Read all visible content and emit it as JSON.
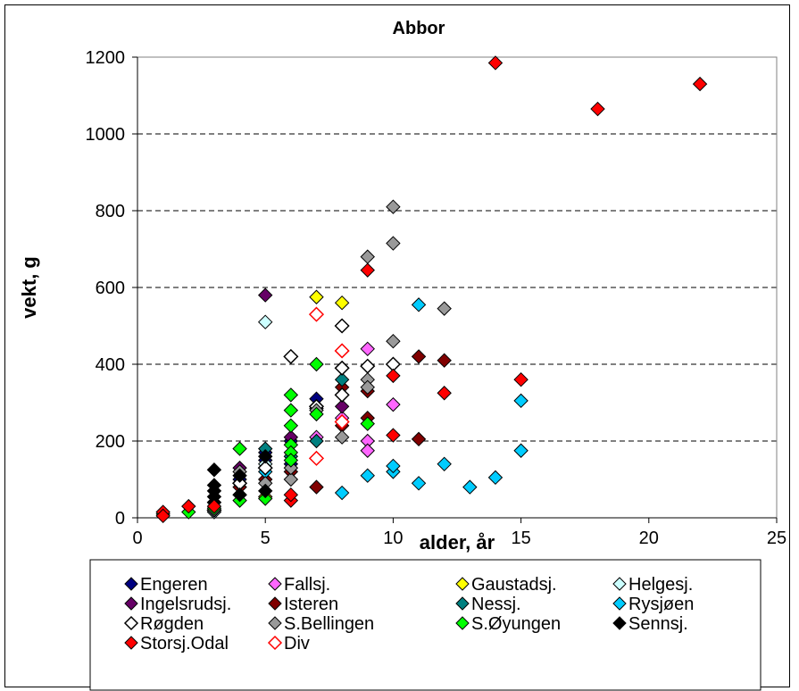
{
  "chart_data": {
    "type": "scatter",
    "title": "Abbor",
    "xlabel": "alder, år",
    "ylabel": "vekt, g",
    "xlim": [
      0,
      25
    ],
    "ylim": [
      0,
      1200
    ],
    "xticks": [
      "0",
      "5",
      "10",
      "15",
      "20",
      "25"
    ],
    "yticks": [
      "0",
      "200",
      "400",
      "600",
      "800",
      "1000",
      "1200"
    ],
    "grid": "horizontal dashed",
    "legend_position": "bottom",
    "series": [
      {
        "name": "Engeren",
        "color": "#000080",
        "marker": "diamond-filled",
        "points": [
          [
            3,
            40
          ],
          [
            4,
            100
          ],
          [
            5,
            150
          ],
          [
            5,
            170
          ],
          [
            6,
            140
          ],
          [
            6,
            200
          ],
          [
            7,
            310
          ],
          [
            7,
            285
          ]
        ]
      },
      {
        "name": "Fallsj.",
        "color": "#ff66ff",
        "marker": "diamond-filled",
        "points": [
          [
            7,
            210
          ],
          [
            8,
            260
          ],
          [
            9,
            200
          ],
          [
            9,
            175
          ],
          [
            9,
            440
          ],
          [
            10,
            295
          ]
        ]
      },
      {
        "name": "Gaustadsj.",
        "color": "#ffff00",
        "marker": "diamond-filled",
        "points": [
          [
            5,
            55
          ],
          [
            7,
            575
          ],
          [
            8,
            560
          ]
        ]
      },
      {
        "name": "Helgesj.",
        "color": "#ccffff",
        "marker": "diamond-filled",
        "points": [
          [
            3,
            15
          ],
          [
            5,
            510
          ],
          [
            5,
            140
          ]
        ]
      },
      {
        "name": "Ingelsrudsj.",
        "color": "#660066",
        "marker": "diamond-filled",
        "points": [
          [
            5,
            580
          ],
          [
            4,
            130
          ],
          [
            6,
            210
          ],
          [
            8,
            290
          ]
        ]
      },
      {
        "name": "Isteren",
        "color": "#800000",
        "marker": "diamond-filled",
        "points": [
          [
            4,
            80
          ],
          [
            5,
            100
          ],
          [
            6,
            120
          ],
          [
            7,
            80
          ],
          [
            8,
            240
          ],
          [
            8,
            340
          ],
          [
            9,
            330
          ],
          [
            9,
            260
          ],
          [
            11,
            420
          ],
          [
            12,
            410
          ],
          [
            11,
            205
          ]
        ]
      },
      {
        "name": "Nessj.",
        "color": "#008080",
        "marker": "diamond-filled",
        "points": [
          [
            4,
            60
          ],
          [
            5,
            180
          ],
          [
            6,
            160
          ],
          [
            7,
            200
          ],
          [
            8,
            360
          ]
        ]
      },
      {
        "name": "Rysjøen",
        "color": "#00ccff",
        "marker": "diamond-filled",
        "points": [
          [
            5,
            120
          ],
          [
            8,
            65
          ],
          [
            9,
            110
          ],
          [
            10,
            120
          ],
          [
            10,
            135
          ],
          [
            11,
            90
          ],
          [
            11,
            555
          ],
          [
            12,
            140
          ],
          [
            13,
            80
          ],
          [
            14,
            105
          ],
          [
            15,
            175
          ],
          [
            15,
            305
          ]
        ]
      },
      {
        "name": "Røgden",
        "color": "#ffffff",
        "marker": "diamond-open",
        "points": [
          [
            3,
            20
          ],
          [
            4,
            90
          ],
          [
            5,
            130
          ],
          [
            6,
            420
          ],
          [
            7,
            290
          ],
          [
            8,
            500
          ],
          [
            8,
            390
          ],
          [
            8,
            320
          ],
          [
            9,
            395
          ],
          [
            10,
            400
          ]
        ]
      },
      {
        "name": "S.Bellingen",
        "color": "#999999",
        "marker": "diamond-filled",
        "points": [
          [
            4,
            120
          ],
          [
            5,
            90
          ],
          [
            6,
            100
          ],
          [
            6,
            130
          ],
          [
            7,
            280
          ],
          [
            8,
            210
          ],
          [
            9,
            680
          ],
          [
            9,
            360
          ],
          [
            9,
            340
          ],
          [
            10,
            810
          ],
          [
            10,
            715
          ],
          [
            10,
            460
          ],
          [
            12,
            545
          ]
        ]
      },
      {
        "name": "S.Øyungen",
        "color": "#00ff00",
        "marker": "diamond-filled",
        "points": [
          [
            1,
            10
          ],
          [
            2,
            15
          ],
          [
            3,
            25
          ],
          [
            4,
            45
          ],
          [
            4,
            180
          ],
          [
            5,
            50
          ],
          [
            6,
            320
          ],
          [
            6,
            280
          ],
          [
            6,
            240
          ],
          [
            6,
            190
          ],
          [
            6,
            170
          ],
          [
            6,
            150
          ],
          [
            7,
            400
          ],
          [
            7,
            270
          ],
          [
            9,
            245
          ]
        ]
      },
      {
        "name": "Sennsj.",
        "color": "#000000",
        "marker": "diamond-filled",
        "points": [
          [
            3,
            125
          ],
          [
            3,
            85
          ],
          [
            3,
            70
          ],
          [
            3,
            55
          ],
          [
            3,
            40
          ],
          [
            4,
            60
          ],
          [
            4,
            110
          ],
          [
            5,
            70
          ],
          [
            5,
            160
          ]
        ]
      },
      {
        "name": "Storsj.Odal",
        "color": "#ff0000",
        "marker": "diamond-filled",
        "points": [
          [
            1,
            15
          ],
          [
            1,
            5
          ],
          [
            2,
            30
          ],
          [
            3,
            30
          ],
          [
            6,
            45
          ],
          [
            6,
            60
          ],
          [
            9,
            645
          ],
          [
            10,
            370
          ],
          [
            10,
            215
          ],
          [
            12,
            325
          ],
          [
            14,
            1185
          ],
          [
            15,
            360
          ],
          [
            18,
            1065
          ],
          [
            22,
            1130
          ]
        ]
      },
      {
        "name": "Div",
        "color": "#ff0000",
        "marker": "diamond-open",
        "points": [
          [
            7,
            530
          ],
          [
            7,
            155
          ],
          [
            8,
            435
          ],
          [
            8,
            250
          ]
        ]
      }
    ]
  }
}
